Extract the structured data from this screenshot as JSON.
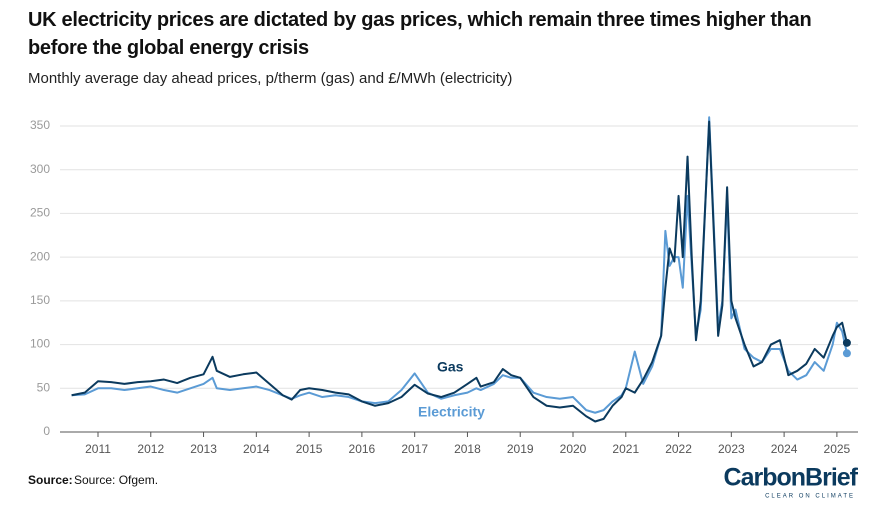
{
  "chart_data": {
    "type": "line",
    "title": "UK electricity prices are dictated by gas prices, which remain three times higher than before the global energy crisis",
    "subtitle": "Monthly average day ahead prices, p/therm (gas) and £/MWh (electricity)",
    "x": [
      2010.5,
      2010.75,
      2011,
      2011.25,
      2011.5,
      2011.75,
      2012,
      2012.25,
      2012.5,
      2012.75,
      2013,
      2013.17,
      2013.25,
      2013.5,
      2013.75,
      2014,
      2014.25,
      2014.5,
      2014.67,
      2014.83,
      2015,
      2015.25,
      2015.5,
      2015.75,
      2016,
      2016.25,
      2016.5,
      2016.75,
      2017,
      2017.25,
      2017.5,
      2017.75,
      2018,
      2018.17,
      2018.25,
      2018.5,
      2018.67,
      2018.83,
      2019,
      2019.25,
      2019.5,
      2019.75,
      2020,
      2020.25,
      2020.42,
      2020.58,
      2020.75,
      2020.92,
      2021,
      2021.17,
      2021.33,
      2021.5,
      2021.67,
      2021.75,
      2021.83,
      2021.92,
      2022,
      2022.08,
      2022.17,
      2022.25,
      2022.33,
      2022.42,
      2022.58,
      2022.75,
      2022.83,
      2022.92,
      2023,
      2023.08,
      2023.25,
      2023.42,
      2023.58,
      2023.75,
      2023.92,
      2024.08,
      2024.25,
      2024.42,
      2024.58,
      2024.75,
      2024.92,
      2025,
      2025.1,
      2025.19
    ],
    "series": [
      {
        "name": "Electricity",
        "color": "#5b9bd5",
        "values": [
          42,
          43,
          50,
          50,
          48,
          50,
          52,
          48,
          45,
          50,
          55,
          62,
          50,
          48,
          50,
          52,
          48,
          42,
          38,
          42,
          45,
          40,
          42,
          40,
          35,
          33,
          35,
          48,
          67,
          45,
          38,
          42,
          45,
          50,
          48,
          55,
          65,
          62,
          62,
          45,
          40,
          38,
          40,
          25,
          22,
          25,
          35,
          42,
          50,
          92,
          55,
          75,
          110,
          230,
          190,
          200,
          200,
          165,
          270,
          190,
          110,
          140,
          360,
          120,
          150,
          265,
          130,
          140,
          95,
          85,
          80,
          95,
          95,
          70,
          60,
          65,
          80,
          70,
          100,
          125,
          115,
          90
        ]
      },
      {
        "name": "Gas",
        "color": "#0b3a5e",
        "values": [
          42,
          45,
          58,
          57,
          55,
          57,
          58,
          60,
          56,
          62,
          66,
          86,
          70,
          63,
          66,
          68,
          55,
          42,
          37,
          48,
          50,
          48,
          45,
          43,
          35,
          30,
          33,
          40,
          54,
          44,
          40,
          45,
          55,
          62,
          52,
          57,
          72,
          65,
          62,
          40,
          30,
          28,
          30,
          18,
          12,
          15,
          30,
          40,
          50,
          45,
          60,
          80,
          110,
          165,
          210,
          195,
          270,
          200,
          315,
          200,
          105,
          150,
          355,
          110,
          145,
          280,
          150,
          130,
          100,
          75,
          80,
          100,
          105,
          65,
          70,
          78,
          95,
          85,
          110,
          120,
          125,
          102
        ]
      }
    ],
    "xlim": [
      2010.28,
      2025.4
    ],
    "xticks": [
      2011,
      2012,
      2013,
      2014,
      2015,
      2016,
      2017,
      2018,
      2019,
      2020,
      2021,
      2022,
      2023,
      2024,
      2025
    ],
    "ylim": [
      0,
      370
    ],
    "yticks": [
      0,
      50,
      100,
      150,
      200,
      250,
      300,
      350
    ],
    "grid": true,
    "source_label": "Source:",
    "source": "Source: Ofgem.",
    "logo": "CarbonBrief",
    "logo_tagline": "CLEAR ON CLIMATE"
  }
}
